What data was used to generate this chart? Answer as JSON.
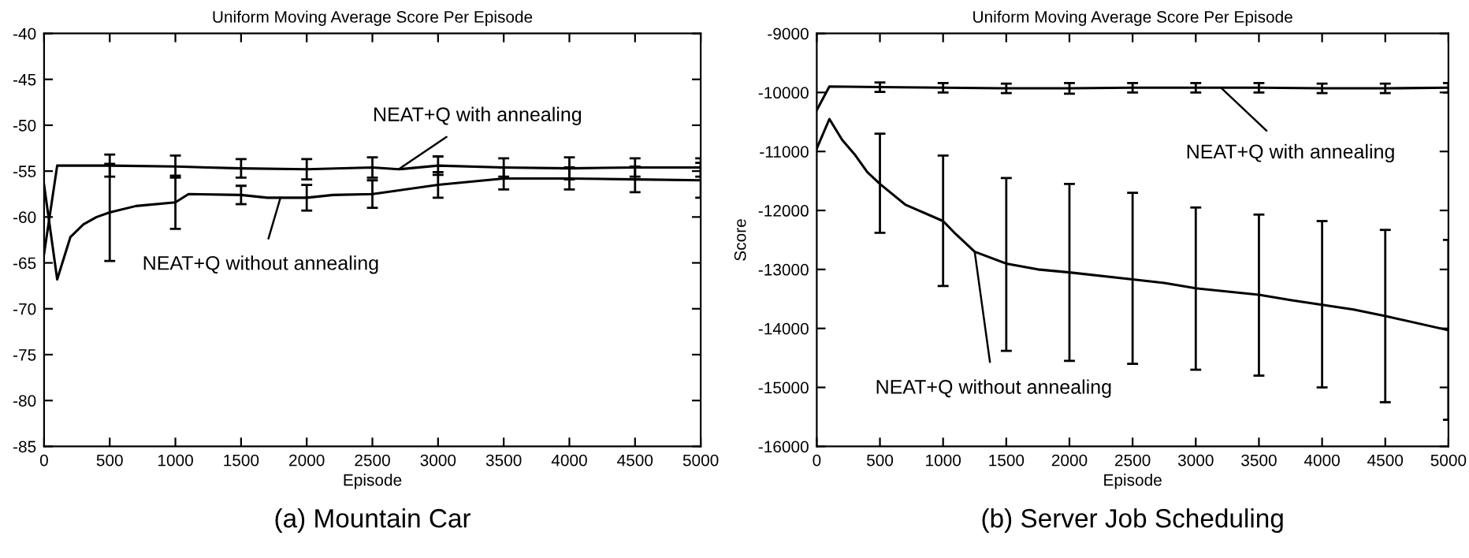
{
  "chart_data": [
    {
      "type": "line",
      "title": "Uniform Moving Average Score Per Episode",
      "xlabel": "Episode",
      "xlim": [
        0,
        5000
      ],
      "xticks": [
        0,
        500,
        1000,
        1500,
        2000,
        2500,
        3000,
        3500,
        4000,
        4500,
        5000
      ],
      "ylim": [
        -85,
        -40
      ],
      "yticks": [
        -85,
        -80,
        -75,
        -70,
        -65,
        -60,
        -55,
        -50,
        -45,
        -40
      ],
      "grid": false,
      "legend": false,
      "marker": "none",
      "line_style": "solid",
      "series": [
        {
          "color": "#000000",
          "x": [
            0,
            100,
            500,
            1000,
            1500,
            2000,
            2500,
            2700,
            3000,
            3500,
            4000,
            4500,
            5000
          ],
          "values": [
            -64,
            -54.4,
            -54.4,
            -54.5,
            -54.7,
            -54.8,
            -54.6,
            -54.8,
            -54.4,
            -54.6,
            -54.7,
            -54.6,
            -54.6
          ],
          "errors": [
            null,
            null,
            1.2,
            1.2,
            1.0,
            1.1,
            1.1,
            null,
            1.0,
            1.0,
            1.2,
            1.0,
            1.0
          ]
        },
        {
          "color": "#000000",
          "x": [
            0,
            100,
            200,
            300,
            400,
            500,
            700,
            1000,
            1100,
            1500,
            1700,
            2000,
            2200,
            2500,
            3000,
            3500,
            4000,
            4500,
            5000
          ],
          "values": [
            -56.5,
            -66.8,
            -62.2,
            -60.8,
            -60,
            -59.5,
            -58.8,
            -58.4,
            -57.5,
            -57.6,
            -57.9,
            -57.9,
            -57.6,
            -57.5,
            -56.5,
            -55.8,
            -55.8,
            -55.9,
            -56.0
          ],
          "errors": [
            null,
            null,
            null,
            null,
            null,
            5.3,
            null,
            2.9,
            null,
            1.0,
            null,
            1.4,
            null,
            1.5,
            1.4,
            1.2,
            1.2,
            1.4,
            1.9
          ]
        }
      ],
      "annotations": [
        {
          "text": "NEAT+Q with annealing",
          "x": 2700,
          "y": -54.8
        },
        {
          "text": "NEAT+Q without annealing",
          "x": 1800,
          "y": -57.9
        },
        "(a) Mountain Car"
      ]
    },
    {
      "type": "line",
      "title": "Uniform Moving Average Score Per Episode",
      "xlabel": "Episode",
      "ylabel": "Score",
      "xlim": [
        0,
        5000
      ],
      "xticks": [
        0,
        500,
        1000,
        1500,
        2000,
        2500,
        3000,
        3500,
        4000,
        4500,
        5000
      ],
      "ylim": [
        -16000,
        -9000
      ],
      "yticks": [
        -16000,
        -15000,
        -14000,
        -13000,
        -12000,
        -11000,
        -10000,
        -9000
      ],
      "grid": false,
      "legend": false,
      "marker": "none",
      "line_style": "solid",
      "series": [
        {
          "color": "#000000",
          "x": [
            0,
            100,
            500,
            1000,
            1500,
            2000,
            2500,
            3000,
            3500,
            4000,
            4500,
            5000
          ],
          "values": [
            -10300,
            -9900,
            -9910,
            -9920,
            -9930,
            -9930,
            -9920,
            -9920,
            -9920,
            -9930,
            -9930,
            -9920
          ],
          "errors": [
            null,
            null,
            80,
            80,
            80,
            90,
            80,
            80,
            80,
            80,
            80,
            80
          ]
        },
        {
          "color": "#000000",
          "x": [
            0,
            100,
            200,
            300,
            400,
            500,
            700,
            1000,
            1100,
            1250,
            1500,
            1750,
            2000,
            2500,
            2750,
            3000,
            3500,
            3750,
            4000,
            4250,
            4500,
            5000
          ],
          "values": [
            -10950,
            -10450,
            -10800,
            -11050,
            -11350,
            -11550,
            -11900,
            -12180,
            -12400,
            -12700,
            -12900,
            -13000,
            -13050,
            -13170,
            -13230,
            -13320,
            -13430,
            -13520,
            -13600,
            -13680,
            -13790,
            -14030
          ],
          "errors": [
            null,
            null,
            null,
            null,
            null,
            [
              -12380,
              -10700
            ],
            null,
            [
              -13280,
              -11070
            ],
            null,
            null,
            [
              -14380,
              -11450
            ],
            null,
            [
              -14550,
              -11550
            ],
            [
              -14600,
              -11700
            ],
            null,
            [
              -14700,
              -11950
            ],
            [
              -14800,
              -12070
            ],
            null,
            [
              -15000,
              -12180
            ],
            null,
            [
              -15250,
              -12330
            ],
            [
              -15550,
              -12500
            ]
          ]
        }
      ],
      "annotations": [
        {
          "text": "NEAT+Q with annealing",
          "x": 3200,
          "y": -9920
        },
        {
          "text": "NEAT+Q without annealing",
          "x": 1250,
          "y": -12700
        },
        "(b) Server Job Scheduling"
      ]
    }
  ]
}
